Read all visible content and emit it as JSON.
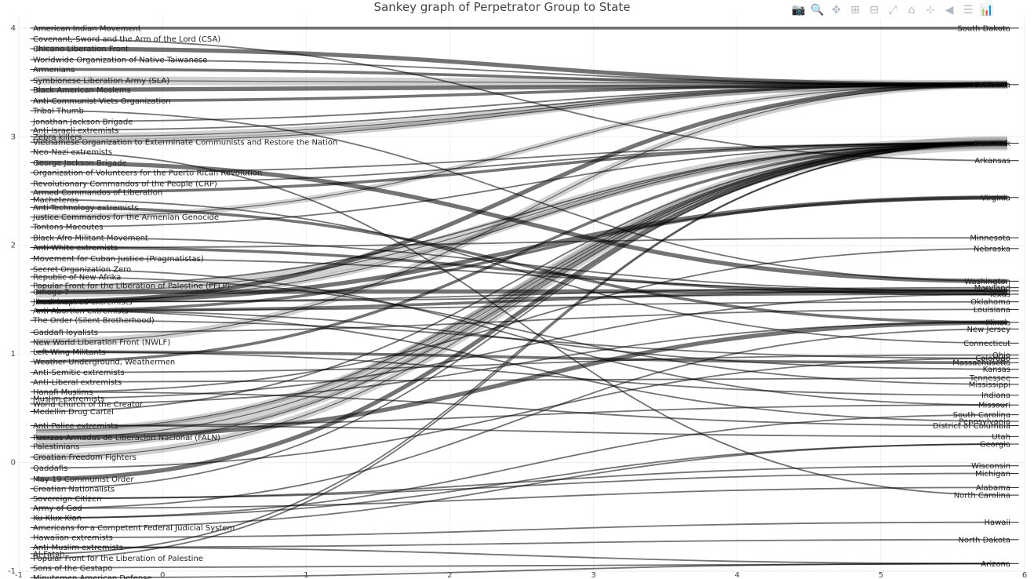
{
  "chart_data": {
    "type": "sankey",
    "title": "Sankey graph of Perpetrator Group to State",
    "xlim": [
      -1,
      6
    ],
    "ylim": [
      -1,
      4.1
    ],
    "xticks": [
      "-1",
      "0",
      "1",
      "2",
      "3",
      "4",
      "5",
      "6"
    ],
    "yticks": [
      "-1",
      "0",
      "1",
      "2",
      "3",
      "4"
    ],
    "sources": [
      {
        "name": "American Indian Movement",
        "y": 4.0
      },
      {
        "name": "Covenant, Sword and the Arm of the Lord (CSA)",
        "y": 3.9
      },
      {
        "name": "Chicano Liberation Front",
        "y": 3.81
      },
      {
        "name": "Worldwide Organization of Native Taiwanese",
        "y": 3.71
      },
      {
        "name": "Armenians",
        "y": 3.62
      },
      {
        "name": "Symbionese Liberation Army (SLA)",
        "y": 3.52
      },
      {
        "name": "Black American Moslems",
        "y": 3.43
      },
      {
        "name": "Anti-Communist Viets Organization",
        "y": 3.33
      },
      {
        "name": "Tribal Thumb",
        "y": 3.24
      },
      {
        "name": "Jonathan Jackson Brigade",
        "y": 3.14
      },
      {
        "name": "Anti-Israeli extremists",
        "y": 3.06
      },
      {
        "name": "Zebra killers",
        "y": 3.0
      },
      {
        "name": "Vietnamese Organization to Exterminate Communists and Restore the Nation",
        "y": 2.95
      },
      {
        "name": "Neo-Nazi extremists",
        "y": 2.86
      },
      {
        "name": "George Jackson Brigade",
        "y": 2.76
      },
      {
        "name": "Organization of Volunteers for the Puerto Rican Revolution",
        "y": 2.67
      },
      {
        "name": "Revolutionary Commandos of the People (CRP)",
        "y": 2.57
      },
      {
        "name": "Armed Commandos of Liberation",
        "y": 2.49
      },
      {
        "name": "Macheteros",
        "y": 2.42
      },
      {
        "name": "Anti-Technology extremists",
        "y": 2.35
      },
      {
        "name": "Justice Commandos for the Armenian Genocide",
        "y": 2.26
      },
      {
        "name": "Tontons Macoutes",
        "y": 2.17
      },
      {
        "name": "Black Afro Militant Movement",
        "y": 2.07
      },
      {
        "name": "Anti-White extremists",
        "y": 1.98
      },
      {
        "name": "Movement for Cuban Justice (Pragmatistas)",
        "y": 1.88
      },
      {
        "name": "Secret Organization Zero",
        "y": 1.78
      },
      {
        "name": "Republic of New Afrika",
        "y": 1.71
      },
      {
        "name": "Popular Front for the Liberation of Palestine (PFLP)",
        "y": 1.63
      },
      {
        "name": "Omega-7",
        "y": 1.57
      },
      {
        "name": "Jihadi-inspired extremists",
        "y": 1.48
      },
      {
        "name": "Anti-Abortion extremists",
        "y": 1.4
      },
      {
        "name": "The Order (Silent Brotherhood)",
        "y": 1.31
      },
      {
        "name": "Gaddafi loyalists",
        "y": 1.2
      },
      {
        "name": "New World Liberation Front (NWLF)",
        "y": 1.11
      },
      {
        "name": "Left-Wing Militants",
        "y": 1.02
      },
      {
        "name": "Weather Underground, Weathermen",
        "y": 0.93
      },
      {
        "name": "Anti-Semitic extremists",
        "y": 0.83
      },
      {
        "name": "Anti-Liberal extremists",
        "y": 0.74
      },
      {
        "name": "Hanafi Muslims",
        "y": 0.65
      },
      {
        "name": "Muslim extremists",
        "y": 0.59
      },
      {
        "name": "World Church of the Creator",
        "y": 0.54
      },
      {
        "name": "Medellin Drug Cartel",
        "y": 0.47
      },
      {
        "name": "Anti-Police extremists",
        "y": 0.34
      },
      {
        "name": "Fuerzas Armadas de Liberacion Nacional (FALN)",
        "y": 0.23
      },
      {
        "name": "Palestinians",
        "y": 0.15
      },
      {
        "name": "Croatian Freedom Fighters",
        "y": 0.05
      },
      {
        "name": "Qaddafis",
        "y": -0.05
      },
      {
        "name": "May 19 Communist Order",
        "y": -0.15
      },
      {
        "name": "Croatian Nationalists",
        "y": -0.24
      },
      {
        "name": "Sovereign Citizen",
        "y": -0.33
      },
      {
        "name": "Army of God",
        "y": -0.42
      },
      {
        "name": "Ku Klux Klan",
        "y": -0.51
      },
      {
        "name": "Americans for a Competent Federal Judicial System",
        "y": -0.6
      },
      {
        "name": "Hawaiian extremists",
        "y": -0.69
      },
      {
        "name": "Anti-Muslim extremists",
        "y": -0.78
      },
      {
        "name": "Al-Fatah",
        "y": -0.84
      },
      {
        "name": "Popular Front for the Liberation of Palestine",
        "y": -0.88
      },
      {
        "name": "Sons of the Gestapo",
        "y": -0.97
      },
      {
        "name": "Minutemen American Defense",
        "y": -1.06
      }
    ],
    "targets": [
      {
        "name": "South Dakota",
        "y": 4.0
      },
      {
        "name": "California",
        "y": 3.48
      },
      {
        "name": "New York",
        "y": 2.94
      },
      {
        "name": "Arkansas",
        "y": 2.78
      },
      {
        "name": "Virginia",
        "y": 2.44
      },
      {
        "name": "Minnesota",
        "y": 2.07
      },
      {
        "name": "Nebraska",
        "y": 1.97
      },
      {
        "name": "Washington",
        "y": 1.67
      },
      {
        "name": "Maryland",
        "y": 1.61
      },
      {
        "name": "Florida",
        "y": 1.58
      },
      {
        "name": "Texas",
        "y": 1.55
      },
      {
        "name": "Oklahoma",
        "y": 1.48
      },
      {
        "name": "Louisiana",
        "y": 1.41
      },
      {
        "name": "Illinois",
        "y": 1.29
      },
      {
        "name": "New Jersey",
        "y": 1.23
      },
      {
        "name": "Connecticut",
        "y": 1.1
      },
      {
        "name": "Ohio",
        "y": 0.99
      },
      {
        "name": "Colorado",
        "y": 0.96
      },
      {
        "name": "Massachusetts",
        "y": 0.92
      },
      {
        "name": "Kansas",
        "y": 0.86
      },
      {
        "name": "Tennessee",
        "y": 0.78
      },
      {
        "name": "Mississippi",
        "y": 0.72
      },
      {
        "name": "Indiana",
        "y": 0.62
      },
      {
        "name": "Missouri",
        "y": 0.53
      },
      {
        "name": "South Carolina",
        "y": 0.44
      },
      {
        "name": "Pennsylvania",
        "y": 0.38
      },
      {
        "name": "District of Columbia",
        "y": 0.34
      },
      {
        "name": "Utah",
        "y": 0.24
      },
      {
        "name": "Georgia",
        "y": 0.17
      },
      {
        "name": "Wisconsin",
        "y": -0.03
      },
      {
        "name": "Michigan",
        "y": -0.1
      },
      {
        "name": "Alabama",
        "y": -0.23
      },
      {
        "name": "North Carolina",
        "y": -0.3
      },
      {
        "name": "Hawaii",
        "y": -0.55
      },
      {
        "name": "North Dakota",
        "y": -0.71
      },
      {
        "name": "Arizona",
        "y": -0.93
      }
    ],
    "links": [
      {
        "source": "Symbionese Liberation Army (SLA)",
        "target": "California",
        "value": 6
      },
      {
        "source": "Chicano Liberation Front",
        "target": "California",
        "value": 3
      },
      {
        "source": "New World Liberation Front (NWLF)",
        "target": "California",
        "value": 5
      },
      {
        "source": "Black American Moslems",
        "target": "California",
        "value": 3
      },
      {
        "source": "Zebra killers",
        "target": "California",
        "value": 5
      },
      {
        "source": "Vietnamese Organization to Exterminate Communists and Restore the Nation",
        "target": "California",
        "value": 4
      },
      {
        "source": "Justice Commandos for the Armenian Genocide",
        "target": "California",
        "value": 4
      },
      {
        "source": "Armenians",
        "target": "California",
        "value": 2
      },
      {
        "source": "Anti-Communist Viets Organization",
        "target": "California",
        "value": 2
      },
      {
        "source": "Worldwide Organization of Native Taiwanese",
        "target": "California",
        "value": 1
      },
      {
        "source": "Jihadi-inspired extremists",
        "target": "California",
        "value": 3
      },
      {
        "source": "Omega-7",
        "target": "New York",
        "value": 8
      },
      {
        "source": "Fuerzas Armadas de Liberacion Nacional (FALN)",
        "target": "New York",
        "value": 10
      },
      {
        "source": "Palestinians",
        "target": "New York",
        "value": 4
      },
      {
        "source": "Croatian Freedom Fighters",
        "target": "New York",
        "value": 5
      },
      {
        "source": "May 19 Communist Order",
        "target": "New York",
        "value": 3
      },
      {
        "source": "Jewish Armed Resistance",
        "target": "New York",
        "value": 4
      },
      {
        "source": "Armed Commandos of Liberation",
        "target": "New York",
        "value": 2
      },
      {
        "source": "Jihadi-inspired extremists",
        "target": "New York",
        "value": 4
      },
      {
        "source": "Covenant, Sword and the Arm of the Lord (CSA)",
        "target": "Arkansas",
        "value": 1
      },
      {
        "source": "Anti-Abortion extremists",
        "target": "Virginia",
        "value": 2
      },
      {
        "source": "Jihadi-inspired extremists",
        "target": "Virginia",
        "value": 3
      },
      {
        "source": "Tribal Thumb",
        "target": "Washington",
        "value": 1
      },
      {
        "source": "George Jackson Brigade",
        "target": "Washington",
        "value": 3
      },
      {
        "source": "Omega-7",
        "target": "Florida",
        "value": 3
      },
      {
        "source": "Anti-Abortion extremists",
        "target": "Florida",
        "value": 2
      },
      {
        "source": "Anti-Technology extremists",
        "target": "Illinois",
        "value": 2
      },
      {
        "source": "Fuerzas Armadas de Liberacion Nacional (FALN)",
        "target": "Illinois",
        "value": 3
      },
      {
        "source": "Weather Underground, Weathermen",
        "target": "New York",
        "value": 2
      },
      {
        "source": "Anti-White extremists",
        "target": "Texas",
        "value": 2
      },
      {
        "source": "The Order (Silent Brotherhood)",
        "target": "Colorado",
        "value": 1
      },
      {
        "source": "Hanafi Muslims",
        "target": "District of Columbia",
        "value": 1
      },
      {
        "source": "Left-Wing Militants",
        "target": "Massachusetts",
        "value": 2
      },
      {
        "source": "Ku Klux Klan",
        "target": "Georgia",
        "value": 1
      },
      {
        "source": "Army of God",
        "target": "Alabama",
        "value": 1
      },
      {
        "source": "Sovereign Citizen",
        "target": "Michigan",
        "value": 1
      },
      {
        "source": "Hawaiian extremists",
        "target": "Hawaii",
        "value": 1
      },
      {
        "source": "Anti-Muslim extremists",
        "target": "Arizona",
        "value": 1
      },
      {
        "source": "Minutemen American Defense",
        "target": "Arizona",
        "value": 1
      },
      {
        "source": "American Indian Movement",
        "target": "South Dakota",
        "value": 2
      },
      {
        "source": "Macheteros",
        "target": "Connecticut",
        "value": 1
      },
      {
        "source": "Secret Organization Zero",
        "target": "Missouri",
        "value": 1
      },
      {
        "source": "Gaddafi loyalists",
        "target": "Louisiana",
        "value": 1
      },
      {
        "source": "Anti-Semitic extremists",
        "target": "Ohio",
        "value": 1
      },
      {
        "source": "Anti-Liberal extremists",
        "target": "Tennessee",
        "value": 1
      },
      {
        "source": "Muslim extremists",
        "target": "Texas",
        "value": 1
      },
      {
        "source": "World Church of the Creator",
        "target": "Illinois",
        "value": 1
      },
      {
        "source": "Medellin Drug Cartel",
        "target": "New York",
        "value": 1
      },
      {
        "source": "Anti-Police extremists",
        "target": "Missouri",
        "value": 1
      },
      {
        "source": "Qaddafis",
        "target": "Colorado",
        "value": 1
      },
      {
        "source": "Croatian Nationalists",
        "target": "New York",
        "value": 1
      },
      {
        "source": "Americans for a Competent Federal Judicial System",
        "target": "Georgia",
        "value": 1
      },
      {
        "source": "Sons of the Gestapo",
        "target": "Arizona",
        "value": 1
      },
      {
        "source": "Neo-Nazi extremists",
        "target": "North Carolina",
        "value": 1
      },
      {
        "source": "Revolutionary Commandos of the People (CRP)",
        "target": "New York",
        "value": 1
      },
      {
        "source": "Organization of Volunteers for the Puerto Rican Revolution",
        "target": "New York",
        "value": 1
      },
      {
        "source": "Movement for Cuban Justice (Pragmatistas)",
        "target": "Florida",
        "value": 1
      },
      {
        "source": "Black Afro Militant Movement",
        "target": "Florida",
        "value": 1
      },
      {
        "source": "Tontons Macoutes",
        "target": "New York",
        "value": 1
      },
      {
        "source": "Republic of New Afrika",
        "target": "Mississippi",
        "value": 1
      },
      {
        "source": "Popular Front for the Liberation of Palestine (PFLP)",
        "target": "New York",
        "value": 1
      },
      {
        "source": "Anti-Israeli extremists",
        "target": "California",
        "value": 1
      },
      {
        "source": "Jonathan Jackson Brigade",
        "target": "California",
        "value": 1
      },
      {
        "source": "Al-Fatah",
        "target": "New York",
        "value": 1
      },
      {
        "source": "Popular Front for the Liberation of Palestine",
        "target": "New York",
        "value": 1
      },
      {
        "source": "Hanafi Muslims",
        "target": "Nebraska",
        "value": 1
      },
      {
        "source": "Anti-White extremists",
        "target": "Minnesota",
        "value": 1
      },
      {
        "source": "Anti-Abortion extremists",
        "target": "Oklahoma",
        "value": 1
      },
      {
        "source": "Anti-Abortion extremists",
        "target": "Kansas",
        "value": 1
      },
      {
        "source": "Anti-Abortion extremists",
        "target": "Pennsylvania",
        "value": 1
      },
      {
        "source": "Jihadi-inspired extremists",
        "target": "Texas",
        "value": 1
      },
      {
        "source": "Jihadi-inspired extremists",
        "target": "Maryland",
        "value": 1
      },
      {
        "source": "Left-Wing Militants",
        "target": "Indiana",
        "value": 1
      },
      {
        "source": "Anti-Police extremists",
        "target": "Utah",
        "value": 1
      },
      {
        "source": "Ku Klux Klan",
        "target": "South Carolina",
        "value": 1
      },
      {
        "source": "Sovereign Citizen",
        "target": "Wisconsin",
        "value": 1
      },
      {
        "source": "Anti-Muslim extremists",
        "target": "North Dakota",
        "value": 1
      },
      {
        "source": "Army of God",
        "target": "New Jersey",
        "value": 1
      }
    ]
  },
  "modebar": [
    {
      "name": "camera-icon",
      "glyph": "📷"
    },
    {
      "name": "zoom-icon",
      "glyph": "🔍"
    },
    {
      "name": "pan-icon",
      "glyph": "✥"
    },
    {
      "name": "zoom-in-icon",
      "glyph": "⊞"
    },
    {
      "name": "zoom-out-icon",
      "glyph": "⊟"
    },
    {
      "name": "autoscale-icon",
      "glyph": "⤢"
    },
    {
      "name": "home-icon",
      "glyph": "⌂"
    },
    {
      "name": "spike-lines-icon",
      "glyph": "⊹"
    },
    {
      "name": "hover-closest-icon",
      "glyph": "◀"
    },
    {
      "name": "hover-compare-icon",
      "glyph": "☰"
    },
    {
      "name": "plotly-logo-icon",
      "glyph": "📊"
    }
  ]
}
